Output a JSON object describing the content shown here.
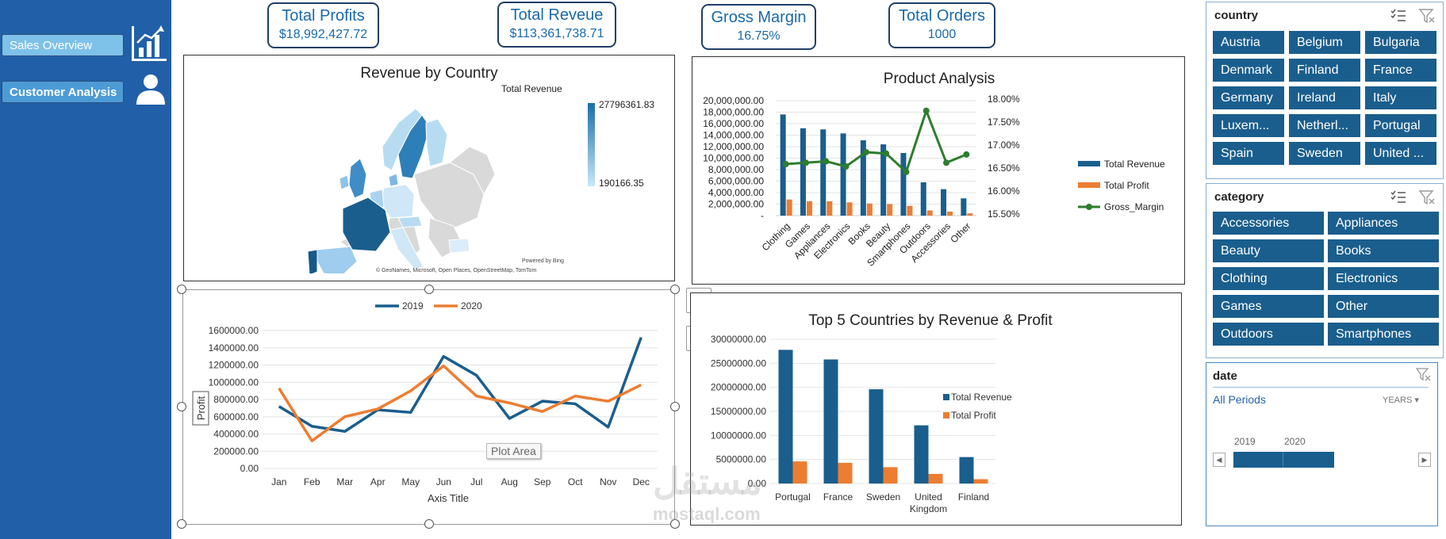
{
  "nav": {
    "sales_overview": "Sales Overview",
    "customer_analysis": "Customer Analysis"
  },
  "kpis": {
    "profits": {
      "label": "Total Profits",
      "value": "$18,992,427.72"
    },
    "revenue": {
      "label": "Total Reveue",
      "value": "$113,361,738.71"
    },
    "margin": {
      "label": "Gross Margin",
      "value": "16.75%"
    },
    "orders": {
      "label": "Total Orders",
      "value": "1000"
    }
  },
  "map": {
    "title": "Revenue by Country",
    "legend_title": "Total Revenue",
    "legend_max": "27796361.83",
    "legend_min": "190166.35",
    "powered": "Powered by Bing",
    "credits": "© GeoNames, Microsoft, Open Places, OpenStreetMap, TomTom"
  },
  "slicers": {
    "country": {
      "header": "country",
      "items": [
        "Austria",
        "Belgium",
        "Bulgaria",
        "Denmark",
        "Finland",
        "France",
        "Germany",
        "Ireland",
        "Italy",
        "Luxem...",
        "Netherl...",
        "Portugal",
        "Spain",
        "Sweden",
        "United ..."
      ]
    },
    "category": {
      "header": "category",
      "items": [
        "Accessories",
        "Appliances",
        "Beauty",
        "Books",
        "Clothing",
        "Electronics",
        "Games",
        "Other",
        "Outdoors",
        "Smartphones"
      ]
    },
    "date": {
      "header": "date",
      "all_periods": "All Periods",
      "level": "YEARS",
      "years": [
        "2019",
        "2020"
      ]
    }
  },
  "ui": {
    "plot_area_tooltip": "Plot Area",
    "watermark_ar": "مستقل",
    "watermark_en": "mostaql.com"
  },
  "colors": {
    "revenue": "#1a5e8d",
    "profit": "#ed7d31",
    "margin": "#2e7d2e",
    "sidebar": "#2160a8"
  },
  "chart_data": [
    {
      "id": "product",
      "type": "bar",
      "title": "Product Analysis",
      "categories": [
        "Clothing",
        "Games",
        "Appliances",
        "Electronics",
        "Books",
        "Beauty",
        "Smartphones",
        "Outdoors",
        "Accessories",
        "Other"
      ],
      "series": [
        {
          "name": "Total Revenue",
          "values": [
            17600000,
            15200000,
            15000000,
            14300000,
            13100000,
            12400000,
            10900000,
            5800000,
            4600000,
            3000000
          ]
        },
        {
          "name": "Total Profit",
          "values": [
            2800000,
            2500000,
            2500000,
            2300000,
            2100000,
            2000000,
            1700000,
            900000,
            700000,
            400000
          ]
        },
        {
          "name": "Gross_Margin",
          "axis": "secondary",
          "type": "line",
          "values": [
            16.62,
            16.65,
            16.68,
            16.57,
            16.88,
            16.85,
            16.45,
            17.78,
            16.65,
            16.83
          ]
        }
      ],
      "y_ticks": [
        "20,000,000.00",
        "18,000,000.00",
        "16,000,000.00",
        "14,000,000.00",
        "12,000,000.00",
        "10,000,000.00",
        "8,000,000.00",
        "6,000,000.00",
        "4,000,000.00",
        "2,000,000.00",
        "-"
      ],
      "y2_ticks": [
        "18.00%",
        "17.50%",
        "17.00%",
        "16.50%",
        "16.00%",
        "15.50%"
      ],
      "ylim": [
        0,
        20000000
      ],
      "y2lim": [
        15.5,
        18.0
      ],
      "legend": "right"
    },
    {
      "id": "profit_trend",
      "type": "line",
      "title": "",
      "categories": [
        "Jan",
        "Feb",
        "Mar",
        "Apr",
        "May",
        "Jun",
        "Jul",
        "Aug",
        "Sep",
        "Oct",
        "Nov",
        "Dec"
      ],
      "series": [
        {
          "name": "2019",
          "values": [
            720000,
            490000,
            430000,
            680000,
            650000,
            1300000,
            1080000,
            580000,
            780000,
            750000,
            480000,
            1520000
          ]
        },
        {
          "name": "2020",
          "values": [
            930000,
            320000,
            600000,
            690000,
            900000,
            1190000,
            840000,
            760000,
            660000,
            840000,
            780000,
            970000
          ]
        }
      ],
      "y_ticks": [
        "1600000.00",
        "1400000.00",
        "1200000.00",
        "1000000.00",
        "800000.00",
        "600000.00",
        "400000.00",
        "200000.00",
        "0.00"
      ],
      "ylim": [
        0,
        1600000
      ],
      "xlabel": "Axis Title",
      "ylabel": "Profit",
      "legend": "top"
    },
    {
      "id": "top5",
      "type": "bar",
      "title": "Top 5 Countries by Revenue & Profit",
      "categories": [
        "Portugal",
        "France",
        "Sweden",
        "United Kingdom",
        "Finland"
      ],
      "series": [
        {
          "name": "Total Revenue",
          "values": [
            27800000,
            25800000,
            19600000,
            12100000,
            5500000
          ]
        },
        {
          "name": "Total Profit",
          "values": [
            4600000,
            4300000,
            3400000,
            2000000,
            900000
          ]
        }
      ],
      "y_ticks": [
        "30000000.00",
        "25000000.00",
        "20000000.00",
        "15000000.00",
        "10000000.00",
        "5000000.00",
        "0.00"
      ],
      "ylim": [
        0,
        30000000
      ],
      "legend": "right"
    }
  ]
}
